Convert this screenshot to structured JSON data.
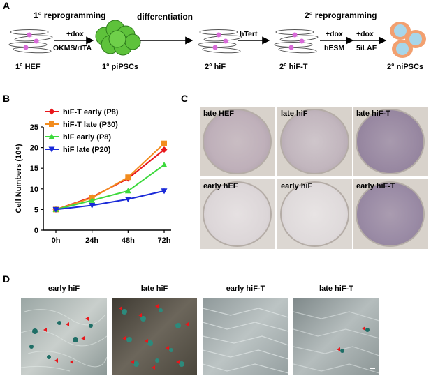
{
  "panelA": {
    "letter": "A",
    "stage1": "1° reprogramming",
    "stage2": "differentiation",
    "stage3": "2° reprogramming",
    "arrow1_top": "+dox",
    "arrow1_bottom": "OKMS/rtTA",
    "arrow3_top": "hTert",
    "arrow4_top": "+dox",
    "arrow4_bottom": "hESM",
    "arrow5_top": "+dox",
    "arrow5_bottom": "5iLAF",
    "cells": [
      "1° HEF",
      "1° piPSCs",
      "2° hiF",
      "2° hiF-T",
      "2° niPSCs"
    ]
  },
  "panelB": {
    "letter": "B"
  },
  "panelC": {
    "letter": "C",
    "plates": [
      "late HEF",
      "late hiF",
      "late hiF-T",
      "early hEF",
      "early hiF",
      "early hiF-T"
    ]
  },
  "panelD": {
    "letter": "D",
    "images": [
      "early hiF",
      "late hiF",
      "early hiF-T",
      "late hiF-T"
    ]
  },
  "colors": {
    "red": "#e8161b",
    "orange": "#f28c1e",
    "green": "#3cd93c",
    "blue": "#1a2ad8",
    "stain": "#3f8f86"
  },
  "chart_data": {
    "type": "line",
    "categories": [
      "0h",
      "24h",
      "48h",
      "72h"
    ],
    "ylabel": "Cell Numbers (10⁴)",
    "ylim": [
      0,
      25
    ],
    "yticks": [
      0,
      5,
      10,
      15,
      20,
      25
    ],
    "legend_position": "top-left",
    "series": [
      {
        "name": "hiF-T early (P8)",
        "color": "#e8161b",
        "marker": "diamond",
        "values": [
          5,
          8,
          12.5,
          19.5
        ],
        "errors": [
          0.2,
          0.3,
          0.5,
          0.6
        ]
      },
      {
        "name": "hiF-T late (P30)",
        "color": "#f28c1e",
        "marker": "square",
        "values": [
          5,
          7.8,
          12.8,
          21
        ],
        "errors": [
          0.2,
          0.3,
          0.5,
          0.4
        ]
      },
      {
        "name": "hiF early (P8)",
        "color": "#3cd93c",
        "marker": "triangle-up",
        "values": [
          5,
          7.2,
          9.5,
          15.8
        ],
        "errors": [
          0.2,
          0.3,
          0.3,
          0.4
        ]
      },
      {
        "name": "hiF late (P20)",
        "color": "#1a2ad8",
        "marker": "triangle-down",
        "values": [
          5,
          6,
          7.5,
          9.5
        ],
        "errors": [
          0.2,
          0.3,
          0.3,
          0.6
        ]
      }
    ]
  }
}
